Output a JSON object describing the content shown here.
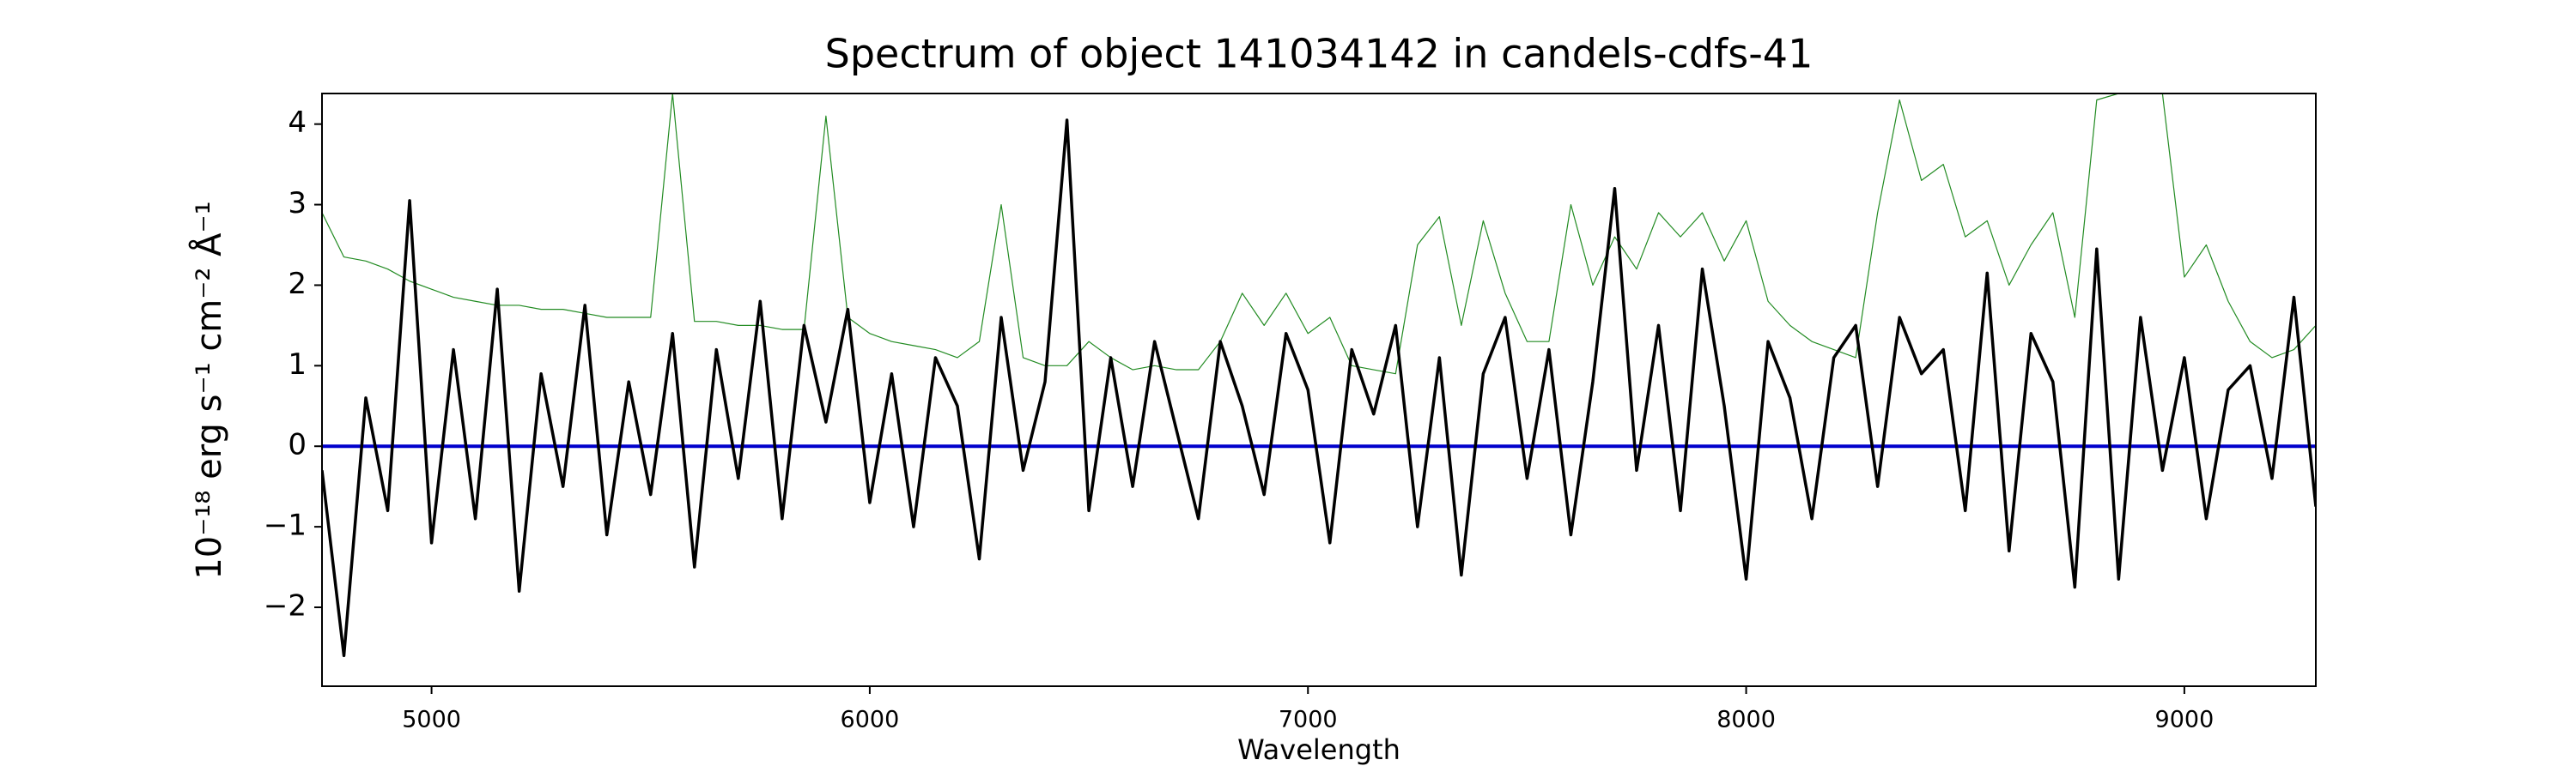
{
  "chart_data": {
    "type": "line",
    "title": "Spectrum of object 141034142 in candels-cdfs-41",
    "x_label": "Wavelength",
    "y_label": "10⁻¹⁸ erg s⁻¹ cm⁻² Å⁻¹",
    "x": [
      4750,
      4800,
      4850,
      4900,
      4950,
      5000,
      5050,
      5100,
      5150,
      5200,
      5250,
      5300,
      5350,
      5400,
      5450,
      5500,
      5550,
      5600,
      5650,
      5700,
      5750,
      5800,
      5850,
      5900,
      5950,
      6000,
      6050,
      6100,
      6150,
      6200,
      6250,
      6300,
      6350,
      6400,
      6450,
      6500,
      6550,
      6600,
      6650,
      6700,
      6750,
      6800,
      6850,
      6900,
      6950,
      7000,
      7050,
      7100,
      7150,
      7200,
      7250,
      7300,
      7350,
      7400,
      7450,
      7500,
      7550,
      7600,
      7650,
      7700,
      7750,
      7800,
      7850,
      7900,
      7950,
      8000,
      8050,
      8100,
      8150,
      8200,
      8250,
      8300,
      8350,
      8400,
      8450,
      8500,
      8550,
      8600,
      8650,
      8700,
      8750,
      8800,
      8850,
      8900,
      8950,
      9000,
      9050,
      9100,
      9150,
      9200,
      9250,
      9300
    ],
    "series": [
      {
        "color": "#228b22",
        "width": 1.2,
        "values": [
          2.9,
          2.35,
          2.3,
          2.2,
          2.05,
          1.95,
          1.85,
          1.8,
          1.75,
          1.75,
          1.7,
          1.7,
          1.65,
          1.6,
          1.6,
          1.6,
          4.38,
          1.55,
          1.55,
          1.5,
          1.5,
          1.45,
          1.45,
          4.1,
          1.6,
          1.4,
          1.3,
          1.25,
          1.2,
          1.1,
          1.3,
          3.0,
          1.1,
          1.0,
          1.0,
          1.3,
          1.1,
          0.95,
          1.0,
          0.95,
          0.95,
          1.3,
          1.9,
          1.5,
          1.9,
          1.4,
          1.6,
          1.0,
          0.95,
          0.9,
          2.5,
          2.85,
          1.5,
          2.8,
          1.9,
          1.3,
          1.3,
          3.0,
          2.0,
          2.6,
          2.2,
          2.9,
          2.6,
          2.9,
          2.3,
          2.8,
          1.8,
          1.5,
          1.3,
          1.2,
          1.1,
          2.9,
          4.3,
          3.3,
          3.5,
          2.6,
          2.8,
          2.0,
          2.5,
          2.9,
          1.6,
          4.3,
          4.38,
          4.38,
          4.38,
          2.1,
          2.5,
          1.8,
          1.3,
          1.1,
          1.2,
          1.5
        ]
      },
      {
        "color": "#0000cc",
        "width": 4,
        "values": [
          0,
          0,
          0,
          0,
          0,
          0,
          0,
          0,
          0,
          0,
          0,
          0,
          0,
          0,
          0,
          0,
          0,
          0,
          0,
          0,
          0,
          0,
          0,
          0,
          0,
          0,
          0,
          0,
          0,
          0,
          0,
          0,
          0,
          0,
          0,
          0,
          0,
          0,
          0,
          0,
          0,
          0,
          0,
          0,
          0,
          0,
          0,
          0,
          0,
          0,
          0,
          0,
          0,
          0,
          0,
          0,
          0,
          0,
          0,
          0,
          0,
          0,
          0,
          0,
          0,
          0,
          0,
          0,
          0,
          0,
          0,
          0,
          0,
          0,
          0,
          0,
          0,
          0,
          0,
          0,
          0,
          0,
          0,
          0,
          0,
          0,
          0,
          0,
          0,
          0,
          0,
          0
        ]
      },
      {
        "color": "#000000",
        "width": 3.5,
        "values": [
          -0.3,
          -2.6,
          0.6,
          -0.8,
          3.05,
          -1.2,
          1.2,
          -0.9,
          1.95,
          -1.8,
          0.9,
          -0.5,
          1.75,
          -1.1,
          0.8,
          -0.6,
          1.4,
          -1.5,
          1.2,
          -0.4,
          1.8,
          -0.9,
          1.5,
          0.3,
          1.7,
          -0.7,
          0.9,
          -1.0,
          1.1,
          0.5,
          -1.4,
          1.6,
          -0.3,
          0.8,
          4.05,
          -0.8,
          1.1,
          -0.5,
          1.3,
          0.2,
          -0.9,
          1.3,
          0.5,
          -0.6,
          1.4,
          0.7,
          -1.2,
          1.2,
          0.4,
          1.5,
          -1.0,
          1.1,
          -1.6,
          0.9,
          1.6,
          -0.4,
          1.2,
          -1.1,
          0.8,
          3.2,
          -0.3,
          1.5,
          -0.8,
          2.2,
          0.5,
          -1.65,
          1.3,
          0.6,
          -0.9,
          1.1,
          1.5,
          -0.5,
          1.6,
          0.9,
          1.2,
          -0.8,
          2.15,
          -1.3,
          1.4,
          0.8,
          -1.75,
          2.45,
          -1.65,
          1.6,
          -0.3,
          1.1,
          -0.9,
          0.7,
          1.0,
          -0.4,
          1.85,
          -0.75
        ]
      }
    ],
    "xlim": [
      4750,
      9300
    ],
    "ylim": [
      -2.98,
      4.38
    ],
    "xticks": [
      5000,
      6000,
      7000,
      8000,
      9000
    ],
    "yticks": [
      -2,
      -1,
      0,
      1,
      2,
      3,
      4
    ],
    "grid": false
  }
}
